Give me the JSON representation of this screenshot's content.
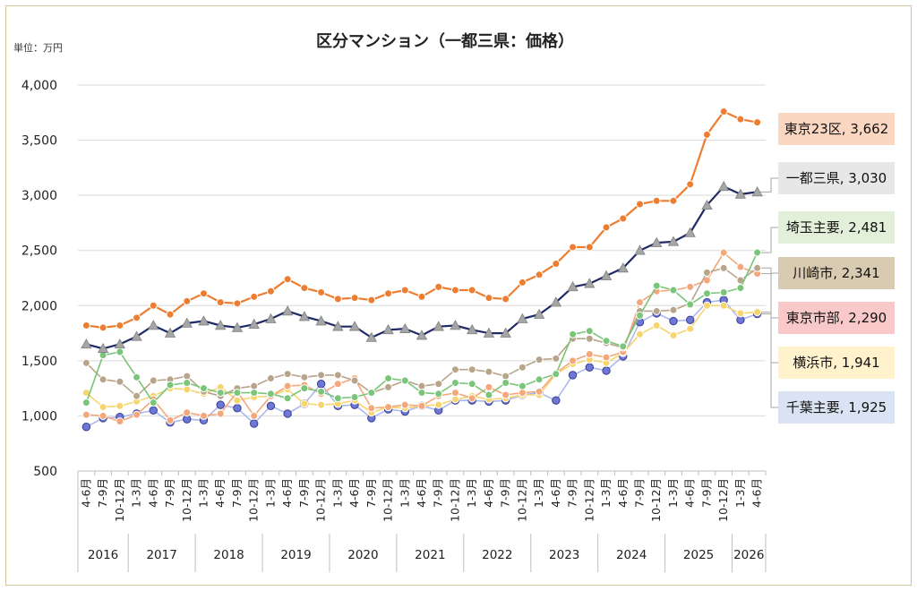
{
  "chart_data": {
    "type": "line",
    "title": "区分マンション（一都三県：価格）",
    "unit_label": "単位：万円",
    "ylim": [
      500,
      4000
    ],
    "yticks": [
      "4,000",
      "3,500",
      "3,000",
      "2,500",
      "2,000",
      "1,500",
      "1,000",
      "500"
    ],
    "ytick_values": [
      4000,
      3500,
      3000,
      2500,
      2000,
      1500,
      1000,
      500
    ],
    "grid": true,
    "legend": "right-end labels",
    "x_labels": [
      "4-6月",
      "7-9月",
      "10-12月",
      "1-3月",
      "4-6月",
      "7-9月",
      "10-12月",
      "1-3月",
      "4-6月",
      "7-9月",
      "10-12月",
      "1-3月",
      "4-6月",
      "7-9月",
      "10-12月",
      "1-3月",
      "4-6月",
      "7-9月",
      "10-12月",
      "1-3月",
      "4-6月",
      "7-9月",
      "10-12月",
      "1-3月",
      "4-6月",
      "7-9月",
      "10-12月",
      "1-3月",
      "4-6月",
      "7-9月",
      "10-12月",
      "1-3月",
      "4-6月",
      "7-9月",
      "10-12月",
      "1-3月",
      "4-6月",
      "7-9月",
      "10-12月",
      "1-3月",
      "4-6月"
    ],
    "years": [
      {
        "label": "2016",
        "start": 0,
        "end": 2
      },
      {
        "label": "2017",
        "start": 3,
        "end": 6
      },
      {
        "label": "2018",
        "start": 7,
        "end": 10
      },
      {
        "label": "2019",
        "start": 11,
        "end": 14
      },
      {
        "label": "2020",
        "start": 15,
        "end": 18
      },
      {
        "label": "2021",
        "start": 19,
        "end": 22
      },
      {
        "label": "2022",
        "start": 23,
        "end": 26
      },
      {
        "label": "2023",
        "start": 27,
        "end": 30
      },
      {
        "label": "2024",
        "start": 31,
        "end": 34
      },
      {
        "label": "2025",
        "start": 35,
        "end": 38
      },
      {
        "label": "2026",
        "start": 39,
        "end": 40
      }
    ],
    "series": [
      {
        "name": "東京23区",
        "label": "東京23区, 3,662",
        "color": "#ed7d31",
        "label_bg": "#fbd7c1",
        "marker": "circle",
        "width": 2.2,
        "values": [
          1820,
          1800,
          1820,
          1890,
          2000,
          1920,
          2040,
          2110,
          2030,
          2020,
          2080,
          2130,
          2240,
          2160,
          2120,
          2060,
          2070,
          2050,
          2110,
          2140,
          2080,
          2170,
          2140,
          2140,
          2070,
          2060,
          2210,
          2280,
          2380,
          2530,
          2530,
          2710,
          2790,
          2920,
          2950,
          2950,
          3100,
          3550,
          3760,
          3690,
          3662
        ]
      },
      {
        "name": "一都三県",
        "label": "一都三県, 3,030",
        "color": "#1f2a66",
        "label_bg": "#e7e7e7",
        "marker": "triangle",
        "width": 2.2,
        "values": [
          1650,
          1610,
          1650,
          1720,
          1820,
          1750,
          1840,
          1860,
          1820,
          1800,
          1830,
          1880,
          1950,
          1900,
          1860,
          1810,
          1810,
          1710,
          1780,
          1790,
          1730,
          1810,
          1820,
          1780,
          1750,
          1750,
          1880,
          1920,
          2030,
          2170,
          2200,
          2270,
          2340,
          2500,
          2570,
          2580,
          2660,
          2910,
          3080,
          3010,
          3030
        ]
      },
      {
        "name": "埼玉主要",
        "label": "埼玉主要, 2,481",
        "color": "#7ac57a",
        "label_bg": "#e2f0d9",
        "marker": "circle",
        "width": 1.6,
        "values": [
          1120,
          1550,
          1580,
          1350,
          1120,
          1280,
          1300,
          1250,
          1210,
          1210,
          1210,
          1200,
          1160,
          1250,
          1220,
          1160,
          1170,
          1210,
          1340,
          1320,
          1210,
          1200,
          1300,
          1290,
          1190,
          1300,
          1270,
          1330,
          1380,
          1740,
          1770,
          1680,
          1630,
          1910,
          2180,
          2140,
          2010,
          2110,
          2120,
          2160,
          2481
        ]
      },
      {
        "name": "川崎市",
        "label": "川崎市, 2,341",
        "color": "#b8a48a",
        "label_bg": "#d9cbb2",
        "marker": "circle",
        "width": 1.6,
        "values": [
          1480,
          1330,
          1310,
          1180,
          1320,
          1330,
          1360,
          1220,
          1180,
          1250,
          1270,
          1340,
          1380,
          1350,
          1370,
          1370,
          1320,
          1210,
          1260,
          1320,
          1270,
          1290,
          1420,
          1420,
          1400,
          1360,
          1440,
          1510,
          1520,
          1700,
          1700,
          1660,
          1620,
          1950,
          1950,
          1960,
          2020,
          2300,
          2340,
          2230,
          2341
        ]
      },
      {
        "name": "東京市部",
        "label": "東京市部, 2,290",
        "color": "#f4a77a",
        "label_bg": "#f9c8c8",
        "marker": "circle",
        "width": 1.6,
        "values": [
          1010,
          1000,
          950,
          1010,
          1150,
          960,
          1030,
          1000,
          1020,
          1220,
          1000,
          1180,
          1270,
          1280,
          1200,
          1290,
          1340,
          1070,
          1080,
          1100,
          1090,
          1180,
          1210,
          1160,
          1260,
          1190,
          1210,
          1220,
          1390,
          1500,
          1560,
          1530,
          1580,
          2030,
          2130,
          2140,
          2170,
          2230,
          2480,
          2350,
          2290
        ]
      },
      {
        "name": "横浜市",
        "label": "横浜市, 1,941",
        "color": "#f7d56e",
        "label_bg": "#fff2cc",
        "marker": "circle",
        "width": 1.6,
        "values": [
          1210,
          1080,
          1090,
          1130,
          1180,
          1250,
          1240,
          1200,
          1260,
          1140,
          1170,
          1180,
          1240,
          1110,
          1100,
          1110,
          1140,
          1030,
          1080,
          1070,
          1090,
          1100,
          1150,
          1180,
          1150,
          1160,
          1190,
          1190,
          1380,
          1470,
          1510,
          1480,
          1570,
          1740,
          1820,
          1730,
          1790,
          2000,
          2000,
          1930,
          1941
        ]
      },
      {
        "name": "千葉主要",
        "label": "千葉主要, 1,925",
        "color": "#aeb8ee",
        "label_bg": "#dae3f3",
        "marker": "bluecircle",
        "width": 1.6,
        "values": [
          900,
          980,
          990,
          1020,
          1050,
          940,
          970,
          960,
          1100,
          1070,
          930,
          1090,
          1020,
          1110,
          1290,
          1090,
          1100,
          980,
          1060,
          1040,
          1090,
          1050,
          1140,
          1140,
          1130,
          1140,
          1190,
          1210,
          1140,
          1370,
          1440,
          1410,
          1540,
          1850,
          1930,
          1860,
          1870,
          2030,
          2050,
          1870,
          1925
        ]
      }
    ]
  }
}
